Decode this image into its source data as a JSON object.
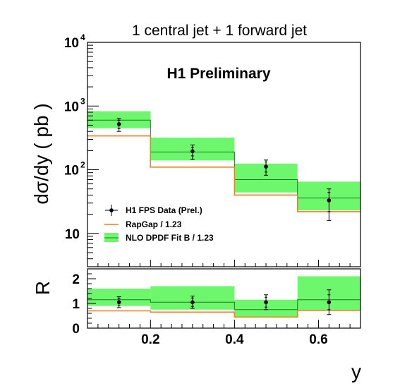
{
  "title": "1 central jet + 1 forward jet",
  "annotation": "H1 Preliminary",
  "colors": {
    "band": "#6cf76c",
    "band_line": "#1f7a1f",
    "rapgap": "#f07d1e",
    "data": "#000000"
  },
  "chart_data": [
    {
      "type": "step",
      "panel": "main",
      "ylabel": "dσ/dy ( pb )",
      "yscale": "log",
      "ylim": [
        3,
        10000
      ],
      "xlim": [
        0.05,
        0.7
      ],
      "ytick_labels": [
        "10",
        "10",
        "10",
        "10"
      ],
      "ytick_exponents": [
        "",
        "2",
        "3",
        "4"
      ],
      "ytick_values": [
        10,
        100,
        1000,
        10000
      ],
      "bin_edges": [
        0.05,
        0.2,
        0.4,
        0.55,
        0.7
      ],
      "series": [
        {
          "name": "H1 FPS Data (Prel.)",
          "kind": "points",
          "x": [
            0.125,
            0.3,
            0.475,
            0.625
          ],
          "y": [
            520,
            195,
            112,
            33
          ],
          "stat_err": [
            80,
            30,
            20,
            11
          ],
          "tot_err": [
            120,
            50,
            30,
            17
          ]
        },
        {
          "name": "RapGap / 1.23",
          "kind": "step",
          "values": [
            340,
            110,
            40,
            22
          ]
        },
        {
          "name": "NLO DPDF Fit B / 1.23",
          "kind": "band",
          "center": [
            600,
            190,
            70,
            36
          ],
          "low": [
            450,
            140,
            44,
            23
          ],
          "high": [
            830,
            320,
            125,
            65
          ]
        }
      ],
      "legend_position": "lower-left"
    },
    {
      "type": "step",
      "panel": "ratio",
      "ylabel": "R",
      "ylim": [
        0,
        2.4
      ],
      "xlim": [
        0.05,
        0.7
      ],
      "xlabel": "y",
      "ytick_labels": [
        "0",
        "1",
        "2"
      ],
      "ytick_values": [
        0,
        1,
        2
      ],
      "xtick_labels": [
        "0.2",
        "0.4",
        "0.6"
      ],
      "xtick_values": [
        0.2,
        0.4,
        0.6
      ],
      "bin_edges": [
        0.05,
        0.2,
        0.4,
        0.55,
        0.7
      ],
      "series": [
        {
          "kind": "points",
          "x": [
            0.125,
            0.3,
            0.475,
            0.625
          ],
          "y": [
            1.05,
            1.05,
            1.05,
            1.05
          ],
          "stat_err": [
            0.15,
            0.17,
            0.2,
            0.3
          ],
          "tot_err": [
            0.22,
            0.25,
            0.3,
            0.5
          ]
        },
        {
          "kind": "step",
          "values": [
            0.7,
            0.65,
            0.45,
            0.72
          ]
        },
        {
          "kind": "band",
          "center": [
            1.15,
            1.05,
            0.75,
            1.15
          ],
          "low": [
            0.9,
            0.75,
            0.45,
            0.7
          ],
          "high": [
            1.6,
            1.7,
            1.15,
            2.1
          ]
        }
      ]
    }
  ]
}
